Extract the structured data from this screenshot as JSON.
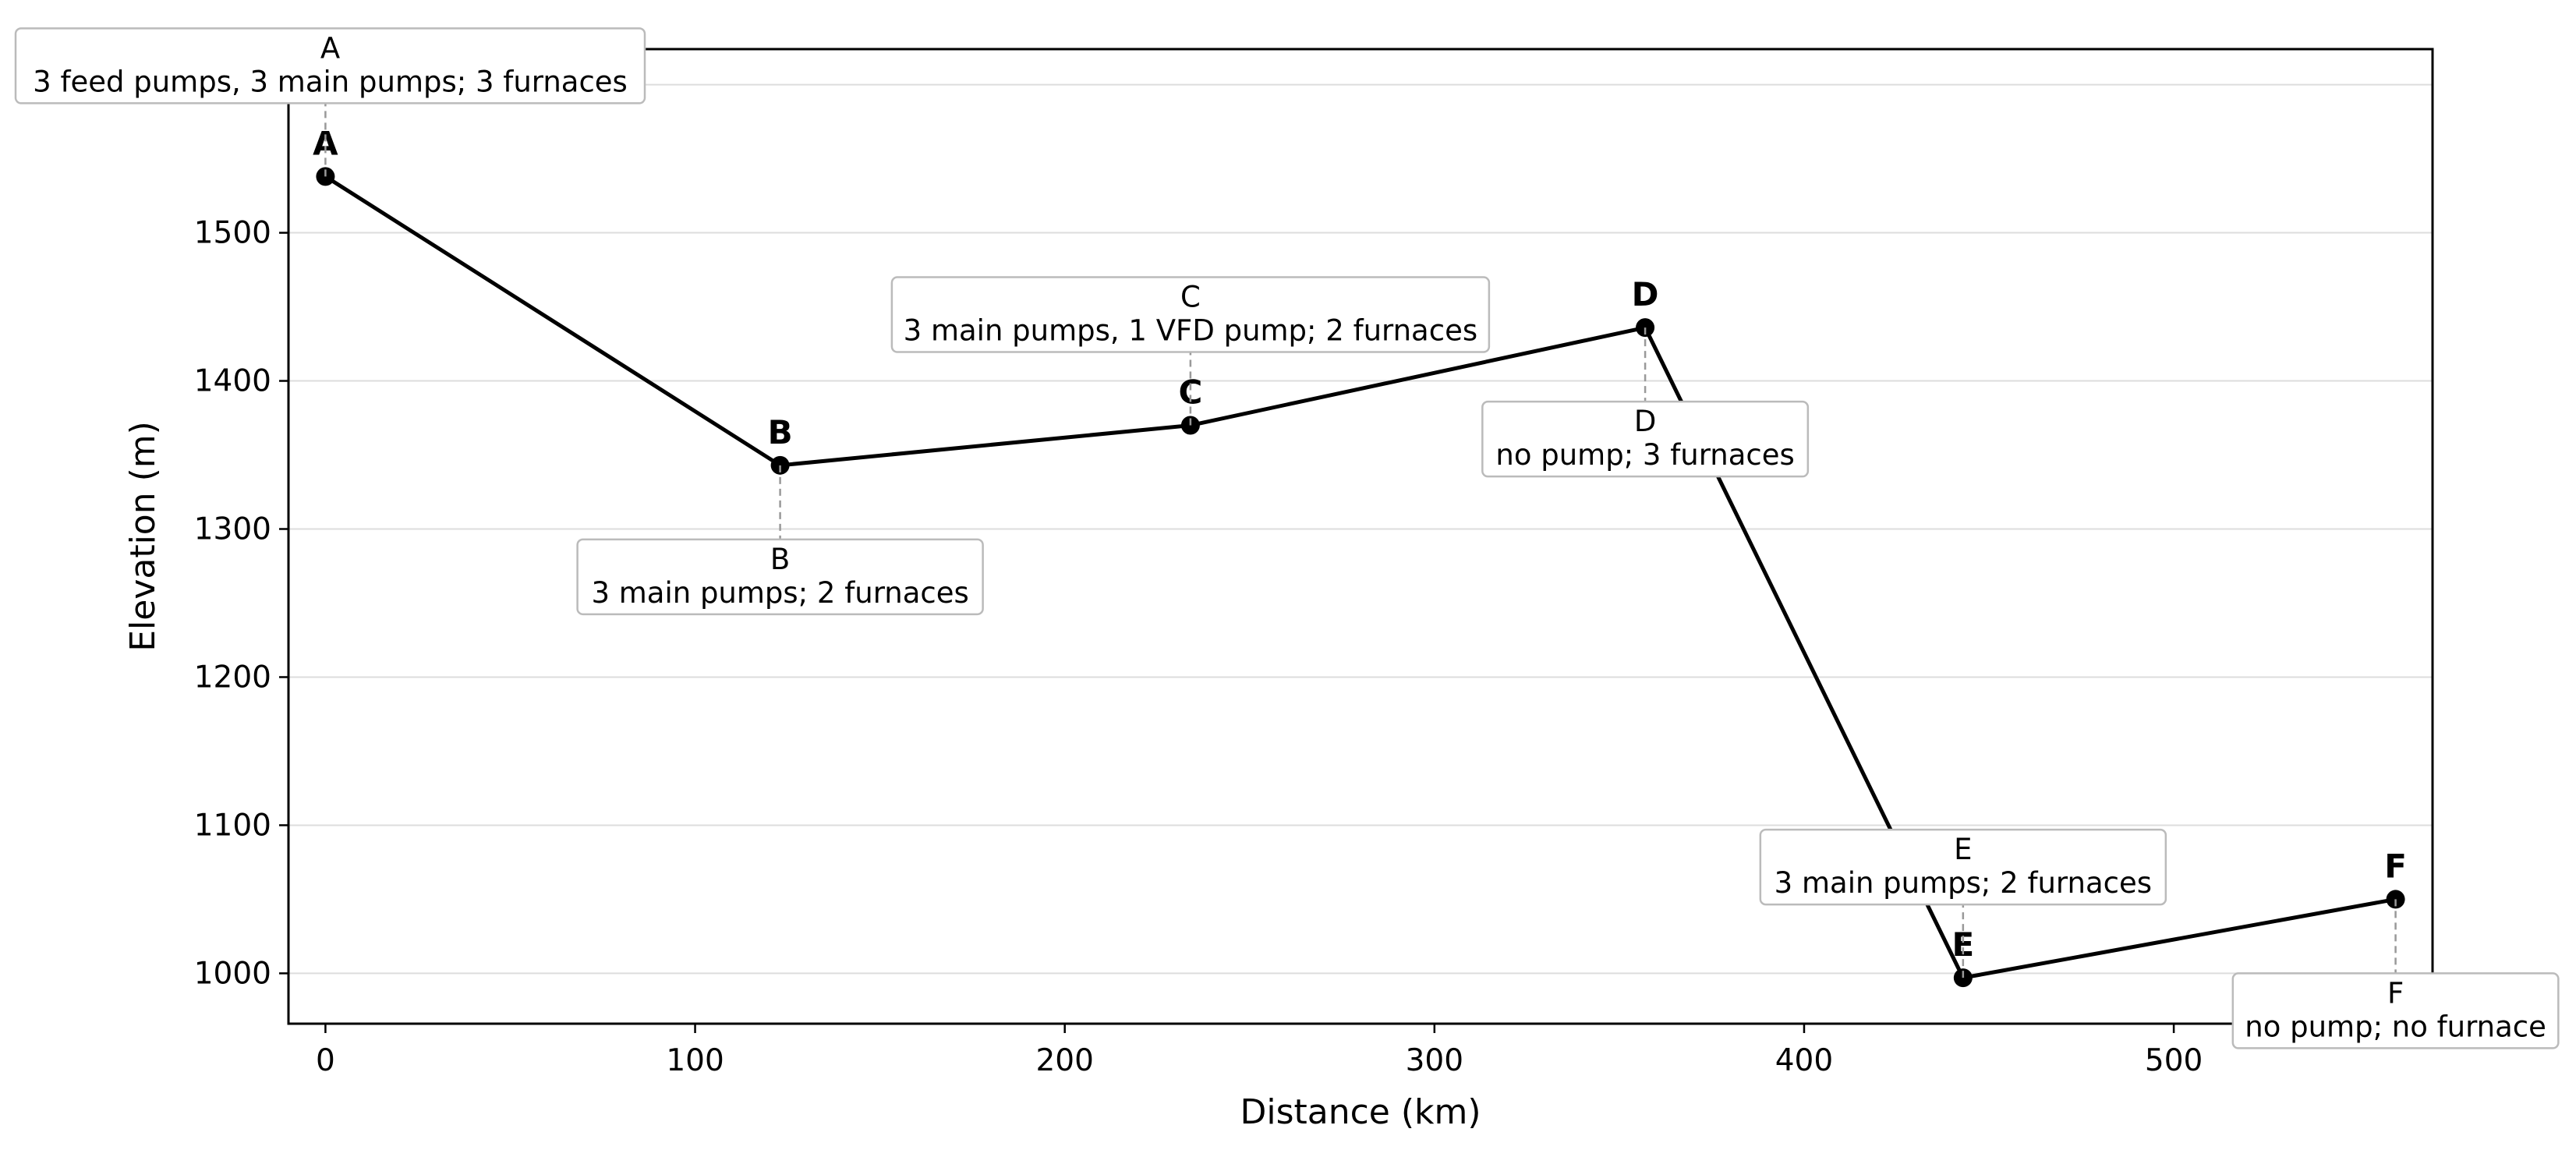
{
  "chart_data": {
    "type": "line",
    "title": "",
    "xlabel": "Distance (km)",
    "ylabel": "Elevation (m)",
    "xlim": [
      -10,
      570
    ],
    "ylim": [
      966,
      1624
    ],
    "x_ticks": [
      0,
      100,
      200,
      300,
      400,
      500
    ],
    "y_ticks": [
      1000,
      1100,
      1200,
      1300,
      1400,
      1500
    ],
    "grid": "horizontal",
    "series": [
      {
        "points": [
          {
            "label": "A",
            "x": 0,
            "y": 1538,
            "annotation": [
              "A",
              "3 feed pumps, 3 main pumps; 3 furnaces"
            ],
            "box_side": "above"
          },
          {
            "label": "B",
            "x": 123,
            "y": 1343,
            "annotation": [
              "B",
              "3 main pumps; 2 furnaces"
            ],
            "box_side": "below"
          },
          {
            "label": "C",
            "x": 234,
            "y": 1370,
            "annotation": [
              "C",
              "3 main pumps, 1 VFD pump; 2 furnaces"
            ],
            "box_side": "above"
          },
          {
            "label": "D",
            "x": 357,
            "y": 1436,
            "annotation": [
              "D",
              "no pump; 3 furnaces"
            ],
            "box_side": "below"
          },
          {
            "label": "E",
            "x": 443,
            "y": 997,
            "annotation": [
              "E",
              "3 main pumps; 2 furnaces"
            ],
            "box_side": "above"
          },
          {
            "label": "F",
            "x": 560,
            "y": 1050,
            "annotation": [
              "F",
              "no pump; no furnace"
            ],
            "box_side": "below"
          }
        ]
      }
    ]
  }
}
